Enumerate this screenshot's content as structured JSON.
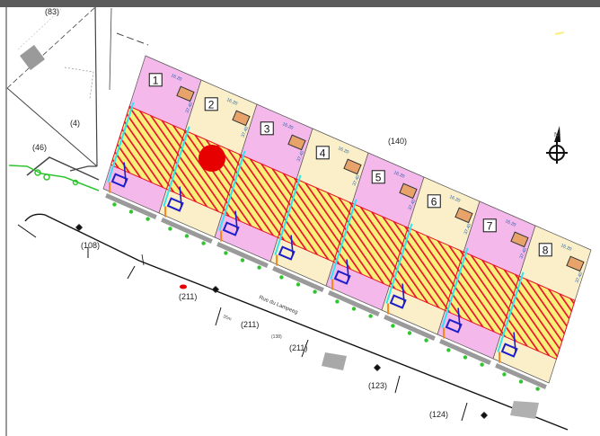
{
  "map": {
    "parcel_labels": [
      "(83)",
      "(4)",
      "(46)",
      "(108)",
      "(140)",
      "(211)",
      "(211)",
      "(211)",
      "(123)",
      "(124)"
    ],
    "street_name": "Rue du Lampeeg",
    "small_labels": [
      "16.20",
      "37.40",
      "35m",
      "(138)"
    ],
    "north_label": "N",
    "lots": [
      {
        "number": "1",
        "fill": "#f4b9ea"
      },
      {
        "number": "2",
        "fill": "#fbefc9"
      },
      {
        "number": "3",
        "fill": "#f4b9ea"
      },
      {
        "number": "4",
        "fill": "#fbefc9"
      },
      {
        "number": "5",
        "fill": "#f4b9ea"
      },
      {
        "number": "6",
        "fill": "#fbefc9"
      },
      {
        "number": "7",
        "fill": "#f4b9ea"
      },
      {
        "number": "8",
        "fill": "#fbefc9"
      }
    ],
    "colors": {
      "hatch": "#e8112d",
      "hatch_bg": "#f7f07a",
      "water": "#2ee6f0",
      "network": "#1e1ec8",
      "green": "#30c430",
      "orange": "#f08a1e",
      "marker": "#e60000"
    }
  }
}
